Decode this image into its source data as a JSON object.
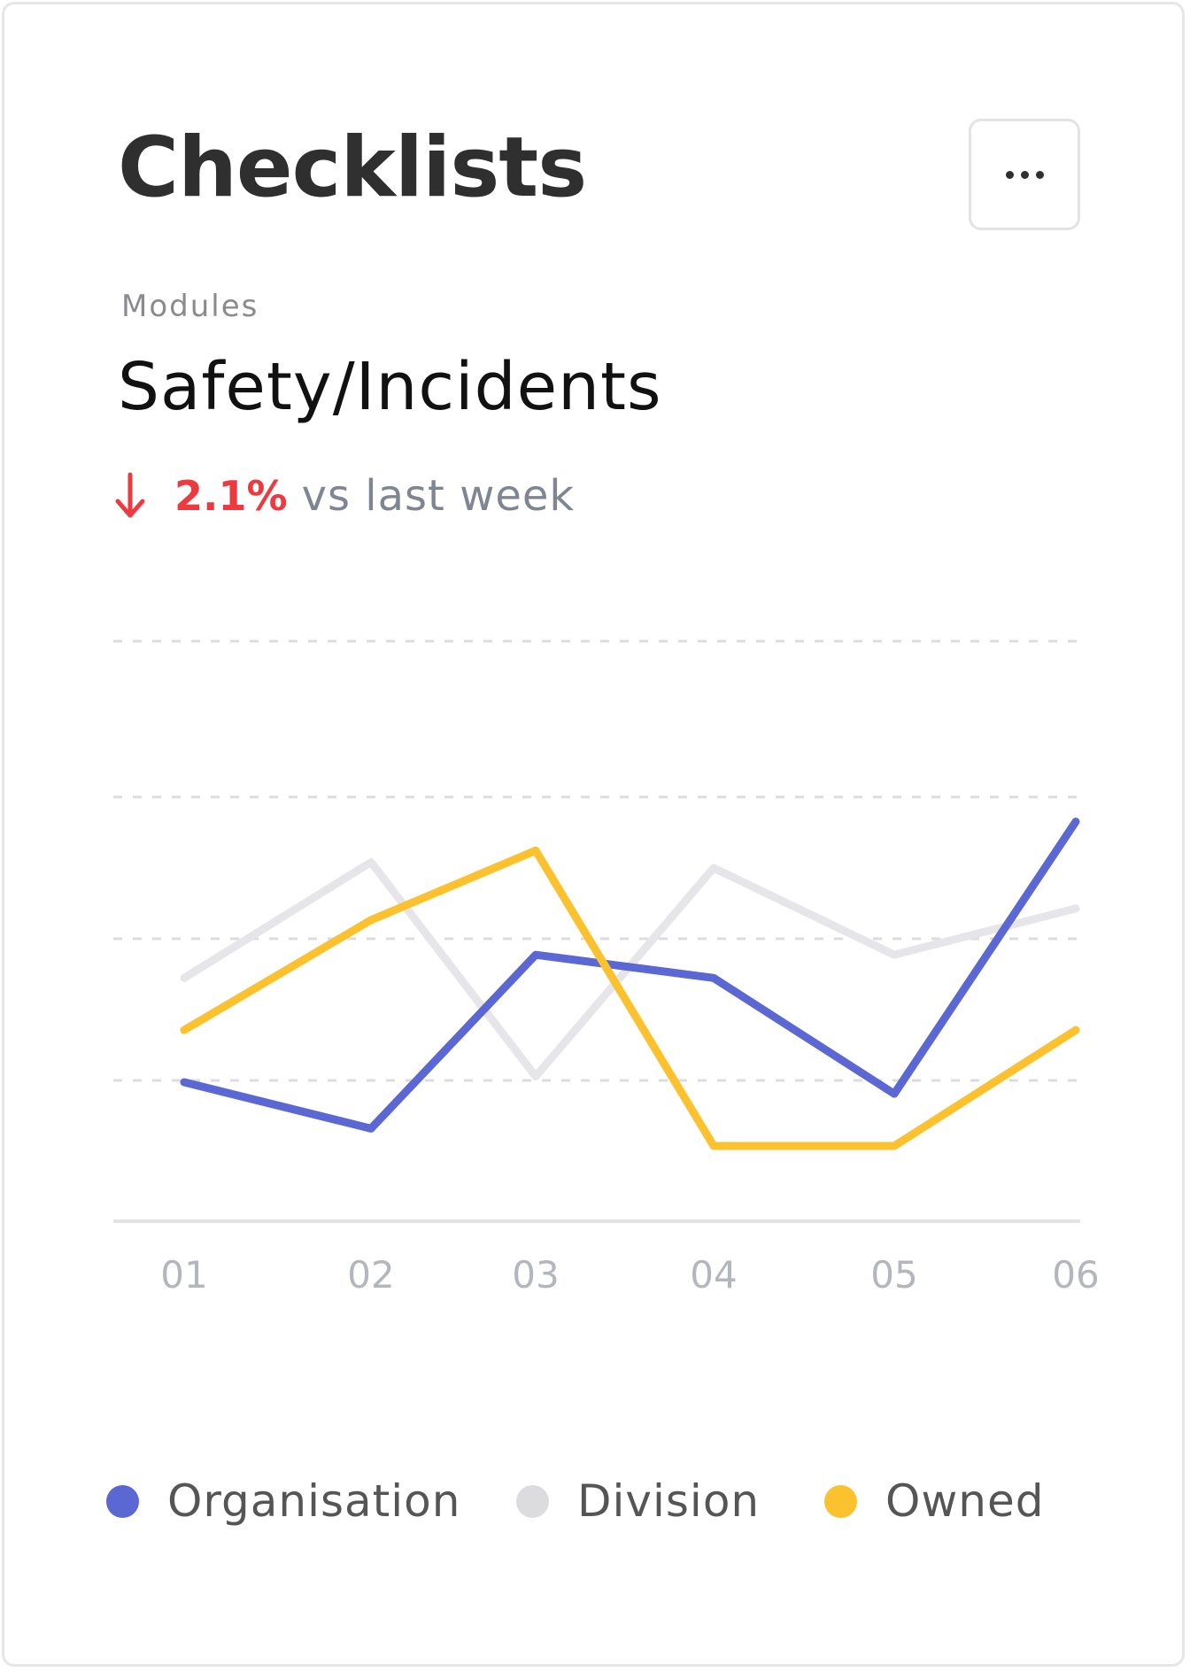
{
  "card": {
    "title": "Checklists",
    "more_icon": "more-horizontal-icon",
    "kicker": "Modules",
    "subtitle": "Safety/Incidents",
    "delta": {
      "icon": "arrow-down-icon",
      "value": "2.1%",
      "suffix": "vs last week",
      "color": "#ee3a3f"
    }
  },
  "chart_data": {
    "type": "line",
    "categories": [
      "01",
      "02",
      "03",
      "04",
      "05",
      "06"
    ],
    "ylim": [
      0,
      100
    ],
    "grid": "dashed horizontal",
    "legend_position": "bottom",
    "series": [
      {
        "name": "Organisation",
        "color": "#5b67d3",
        "values": [
          24,
          16,
          46,
          42,
          22,
          69
        ]
      },
      {
        "name": "Division",
        "color": "#e6e6ea",
        "values": [
          42,
          62,
          25,
          61,
          46,
          54
        ]
      },
      {
        "name": "Owned",
        "color": "#fcc12f",
        "values": [
          33,
          52,
          64,
          13,
          13,
          33
        ]
      }
    ]
  }
}
